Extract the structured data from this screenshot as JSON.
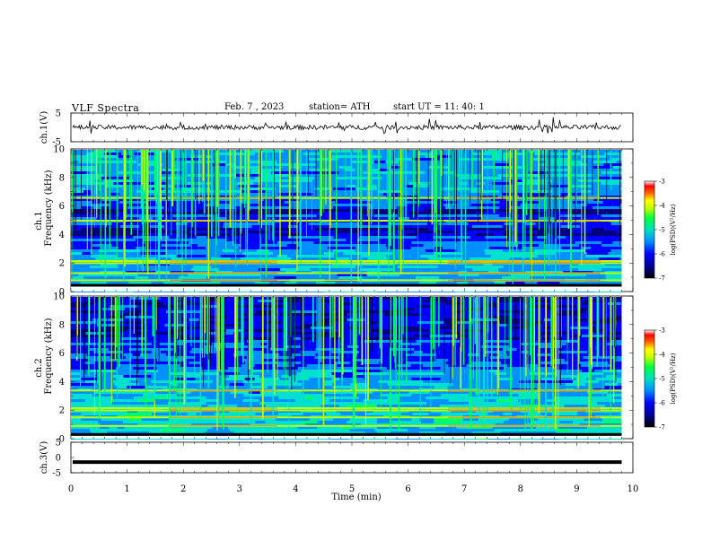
{
  "header": {
    "title": "VLF  Spectra",
    "date": "Feb. 7  , 2023",
    "station": "station= ATH",
    "start_ut": "start  UT  =    11: 40: 1"
  },
  "chart_data": [
    {
      "type": "line",
      "panel": "ch1-waveform",
      "ylabel": "ch.1(V)",
      "ylim": [
        -5,
        5
      ],
      "yticks": [
        "5",
        "-5"
      ],
      "xlim": [
        0,
        10
      ],
      "series": [
        {
          "values": [
            0
          ]
        }
      ],
      "signal": "noisy waveform near 0 V with spikes"
    },
    {
      "type": "heatmap",
      "panel": "ch1-spectrogram",
      "ylabel": "ch.1\nFrequency (kHz)",
      "ylim": [
        0,
        10
      ],
      "yticks": [
        "0",
        "2",
        "4",
        "6",
        "8",
        "10"
      ],
      "xlim": [
        0,
        9.8
      ],
      "colorbar": {
        "label": "log(PSD)(V²/Hz)",
        "range": [
          -7,
          -3
        ],
        "ticks": [
          "-3",
          "-4",
          "-5",
          "-6",
          "-7"
        ]
      },
      "features": {
        "dark_bands_khz": [
          [
            4.0,
            4.6
          ],
          [
            5.5,
            5.9
          ]
        ],
        "bright_lines_khz": [
          2.0,
          2.15,
          1.3,
          0.8,
          5.0,
          6.6
        ],
        "white_gap_khz": [
          0.0,
          0.35
        ]
      }
    },
    {
      "type": "heatmap",
      "panel": "ch2-spectrogram",
      "ylabel": "ch.2\nFrequency (kHz)",
      "ylim": [
        0,
        10
      ],
      "yticks": [
        "0",
        "2",
        "4",
        "6",
        "8",
        "10"
      ],
      "xlim": [
        0,
        9.8
      ],
      "colorbar": {
        "label": "log(PSD)(V²/Hz)",
        "range": [
          -7,
          -3
        ],
        "ticks": [
          "-3",
          "-4",
          "-5",
          "-6",
          "-7"
        ]
      },
      "features": {
        "dark_bands_khz": [
          [
            7.0,
            9.5
          ]
        ],
        "bright_lines_khz": [
          2.0,
          2.15,
          3.4,
          1.5,
          0.9
        ],
        "white_gap_khz": [
          0.0,
          0.2
        ]
      }
    },
    {
      "type": "line",
      "panel": "ch3-waveform",
      "ylabel": "ch.3(V)",
      "ylim": [
        -5,
        5
      ],
      "yticks": [
        "5",
        "0",
        "-5"
      ],
      "xlim": [
        0,
        10
      ],
      "series": [
        {
          "values": [
            -1.5
          ]
        }
      ],
      "signal": "flat thick line near -1.5 V"
    }
  ],
  "x_axis": {
    "label": "Time  (min)",
    "ticks": [
      "0",
      "1",
      "2",
      "3",
      "4",
      "5",
      "6",
      "7",
      "8",
      "9",
      "10"
    ],
    "xlim": [
      0,
      10
    ]
  },
  "colors": {
    "c1": "#000080",
    "c2": "#0000ff",
    "c3": "#0090ff",
    "c4": "#00e0d0",
    "c5": "#00ff60",
    "c6": "#c0ff00",
    "c7": "#ffff00",
    "c8": "#ff8000",
    "c9": "#ff0000",
    "c10": "#ffffff"
  }
}
